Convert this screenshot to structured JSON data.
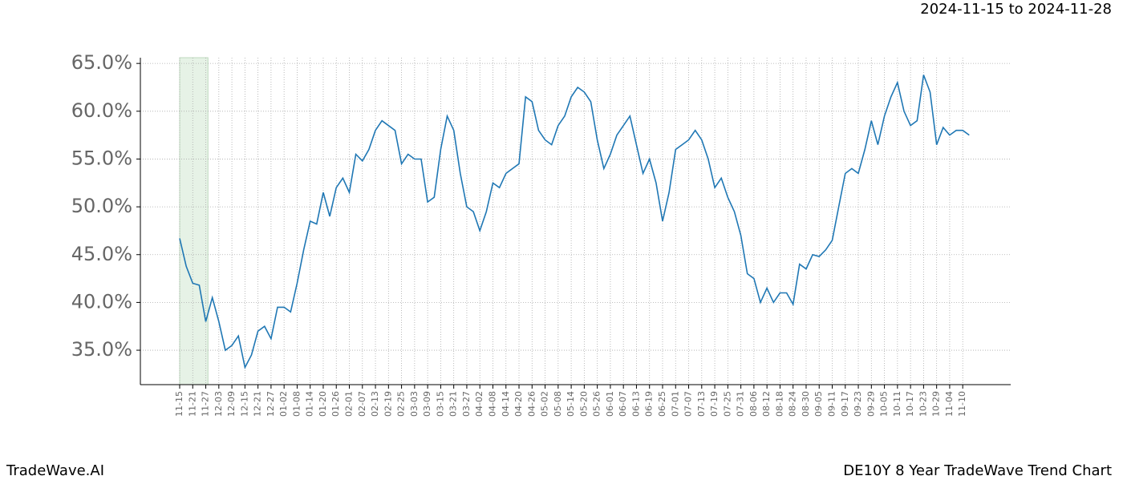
{
  "chart_data": {
    "type": "line",
    "title": "2024-11-15 to 2024-11-28",
    "footer_left": "TradeWave.AI",
    "footer_right": "DE10Y 8 Year TradeWave Trend Chart",
    "categories": [
      "11-15",
      null,
      "11-21",
      null,
      "11-27",
      null,
      "12-03",
      null,
      "12-09",
      null,
      "12-15",
      null,
      "12-21",
      null,
      "12-27",
      null,
      "01-02",
      null,
      "01-08",
      null,
      "01-14",
      null,
      "01-20",
      null,
      "01-26",
      null,
      "02-01",
      null,
      "02-07",
      null,
      "02-13",
      null,
      "02-19",
      null,
      "02-25",
      null,
      "03-03",
      null,
      "03-09",
      null,
      "03-15",
      null,
      "03-21",
      null,
      "03-27",
      null,
      "04-02",
      null,
      "04-08",
      null,
      "04-14",
      null,
      "04-20",
      null,
      "04-26",
      null,
      "05-02",
      null,
      "05-08",
      null,
      "05-14",
      null,
      "05-20",
      null,
      "05-26",
      null,
      "06-01",
      null,
      "06-07",
      null,
      "06-13",
      null,
      "06-19",
      null,
      "06-25",
      null,
      "07-01",
      null,
      "07-07",
      null,
      "07-13",
      null,
      "07-19",
      null,
      "07-25",
      null,
      "07-31",
      null,
      "08-06",
      null,
      "08-12",
      null,
      "08-18",
      null,
      "08-24",
      null,
      "08-30",
      null,
      "09-05",
      null,
      "09-11",
      null,
      "09-17",
      null,
      "09-23",
      null,
      "09-29",
      null,
      "10-05",
      null,
      "10-11",
      null,
      "10-17",
      null,
      "10-23",
      null,
      "10-29",
      null,
      "11-04",
      null,
      "11-10",
      null
    ],
    "series": [
      {
        "name": "DE10Y",
        "color": "#1f77b4",
        "values": [
          46.7,
          43.8,
          42.0,
          41.8,
          38.0,
          40.5,
          38.0,
          35.0,
          35.5,
          36.5,
          33.2,
          34.5,
          37.0,
          37.5,
          36.2,
          39.5,
          39.5,
          39.0,
          42.0,
          45.5,
          48.5,
          48.2,
          51.5,
          49.0,
          52.0,
          53.0,
          51.5,
          55.5,
          54.8,
          56.0,
          58.0,
          59.0,
          58.5,
          58.0,
          54.5,
          55.5,
          55.0,
          55.0,
          50.5,
          51.0,
          56.0,
          59.5,
          58.0,
          53.5,
          50.0,
          49.5,
          47.5,
          49.5,
          52.5,
          52.0,
          53.5,
          54.0,
          54.5,
          61.5,
          61.0,
          58.0,
          57.0,
          56.5,
          58.5,
          59.5,
          61.5,
          62.5,
          62.0,
          61.0,
          57.0,
          54.0,
          55.5,
          57.5,
          58.5,
          59.5,
          56.5,
          53.5,
          55.0,
          52.5,
          48.5,
          51.5,
          56.0,
          56.5,
          57.0,
          58.0,
          57.0,
          55.0,
          52.0,
          53.0,
          51.0,
          49.5,
          47.0,
          43.0,
          42.5,
          40.0,
          41.5,
          40.0,
          41.0,
          41.0,
          39.8,
          44.0,
          43.5,
          45.0,
          44.8,
          45.5,
          46.5,
          50.0,
          53.5,
          54.0,
          53.5,
          56.0,
          59.0,
          56.5,
          59.5,
          61.5,
          63.0,
          60.0,
          58.5,
          59.0,
          63.8,
          62.0,
          56.5,
          58.3,
          57.5,
          58.0,
          58.0,
          57.5
        ]
      }
    ],
    "ylim": [
      31.4,
      65.6
    ],
    "yticks": [
      {
        "value": 35,
        "label": "35.0%"
      },
      {
        "value": 40,
        "label": "40.0%"
      },
      {
        "value": 45,
        "label": "45.0%"
      },
      {
        "value": 50,
        "label": "50.0%"
      },
      {
        "value": 55,
        "label": "55.0%"
      },
      {
        "value": 60,
        "label": "60.0%"
      },
      {
        "value": 65,
        "label": "65.0%"
      }
    ],
    "grid": true,
    "highlight_color": "#e6f2e6"
  }
}
